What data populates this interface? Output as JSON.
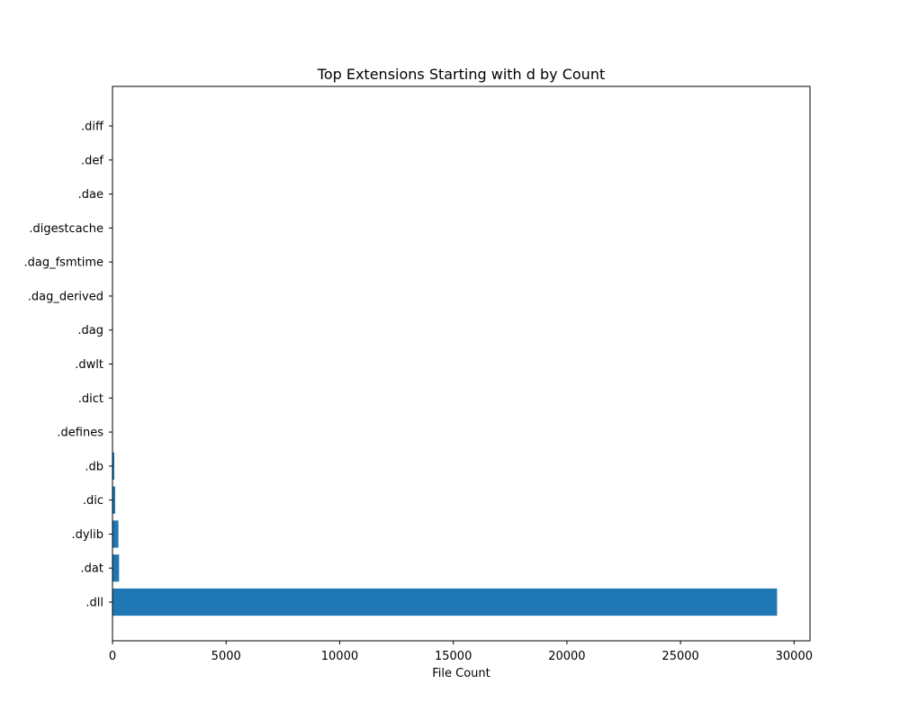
{
  "chart_data": {
    "type": "bar",
    "orientation": "horizontal",
    "title": "Top Extensions Starting with d by Count",
    "xlabel": "File Count",
    "ylabel": "",
    "categories": [
      ".dll",
      ".dat",
      ".dylib",
      ".dic",
      ".db",
      ".defines",
      ".dict",
      ".dwlt",
      ".dag",
      ".dag_derived",
      ".dag_fsmtime",
      ".digestcache",
      ".dae",
      ".def",
      ".diff"
    ],
    "values": [
      29250,
      290,
      260,
      120,
      80,
      6,
      5,
      5,
      4,
      4,
      4,
      3,
      3,
      2,
      2
    ],
    "xlim": [
      0,
      30700
    ],
    "xticks": [
      0,
      5000,
      10000,
      15000,
      20000,
      25000,
      30000
    ],
    "bar_color": "#1f77b4",
    "grid": false,
    "legend": "none"
  }
}
